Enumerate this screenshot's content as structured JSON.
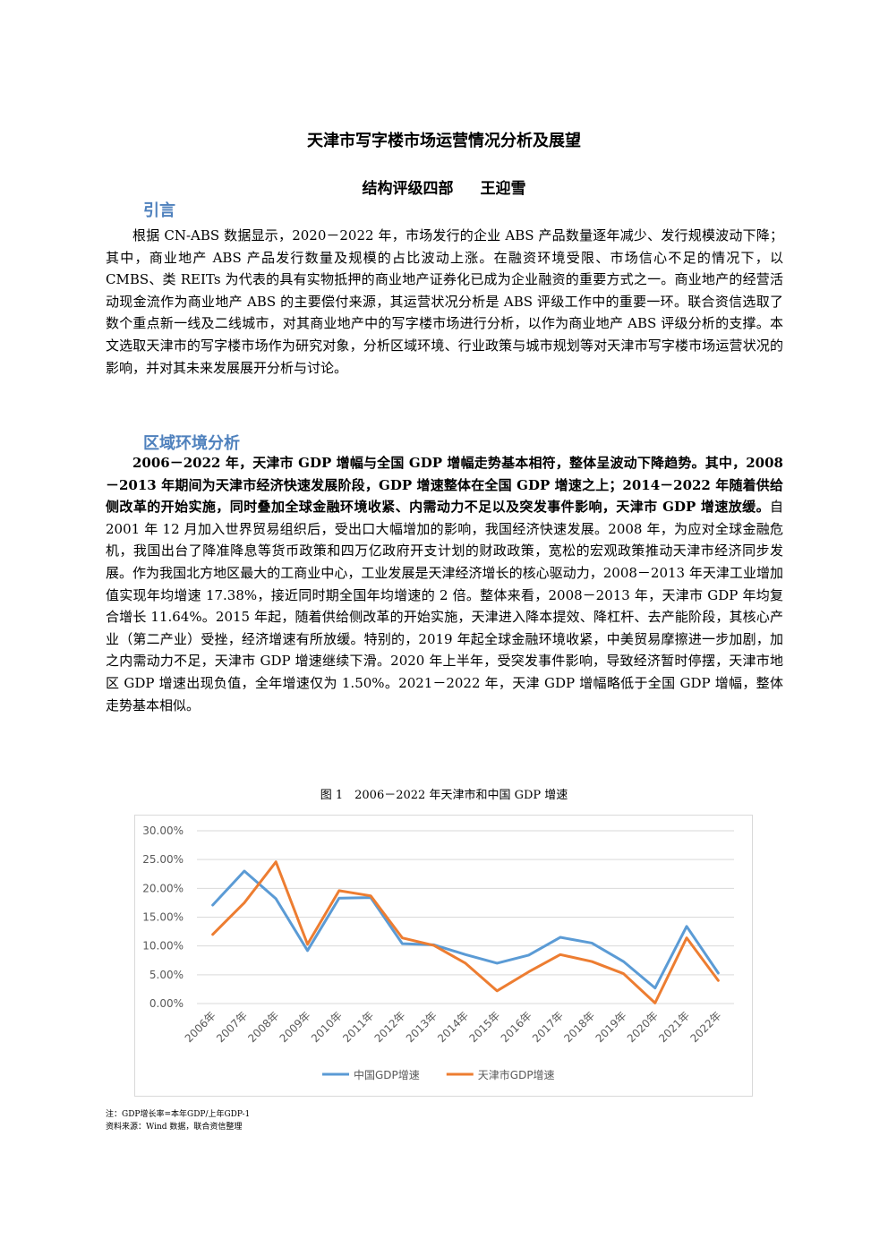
{
  "header": {
    "title": "天津市写字楼市场运营情况分析及展望",
    "department": "结构评级四部",
    "author": "王迎雪"
  },
  "sections": [
    {
      "heading": "引言",
      "paragraphs": [
        {
          "bold": null,
          "text": "根据 CN-ABS 数据显示，2020－2022 年，市场发行的企业 ABS 产品数量逐年减少、发行规模波动下降；其中，商业地产 ABS 产品发行数量及规模的占比波动上涨。在融资环境受限、市场信心不足的情况下，以 CMBS、类 REITs 为代表的具有实物抵押的商业地产证券化已成为企业融资的重要方式之一。商业地产的经营活动现金流作为商业地产 ABS 的主要偿付来源，其运营状况分析是 ABS 评级工作中的重要一环。联合资信选取了数个重点新一线及二线城市，对其商业地产中的写字楼市场进行分析，以作为商业地产 ABS 评级分析的支撑。本文选取天津市的写字楼市场作为研究对象，分析区域环境、行业政策与城市规划等对天津市写字楼市场运营状况的影响，并对其未来发展展开分析与讨论。"
        }
      ]
    },
    {
      "heading": "区域环境分析",
      "paragraphs": [
        {
          "bold": "2006－2022 年，天津市 GDP 增幅与全国 GDP 增幅走势基本相符，整体呈波动下降趋势。其中，2008－2013 年期间为天津市经济快速发展阶段，GDP 增速整体在全国 GDP 增速之上；2014－2022 年随着供给侧改革的开始实施，同时叠加全球金融环境收紧、内需动力不足以及突发事件影响，天津市 GDP 增速放缓。",
          "text": "自 2001 年 12 月加入世界贸易组织后，受出口大幅增加的影响，我国经济快速发展。2008 年，为应对全球金融危机，我国出台了降准降息等货币政策和四万亿政府开支计划的财政政策，宽松的宏观政策推动天津市经济同步发展。作为我国北方地区最大的工商业中心，工业发展是天津经济增长的核心驱动力，2008－2013 年天津工业增加值实现年均增速 17.38%，接近同时期全国年均增速的 2 倍。整体来看，2008－2013 年，天津市 GDP 年均复合增长 11.64%。2015 年起，随着供给侧改革的开始实施，天津进入降本提效、降杠杆、去产能阶段，其核心产业（第二产业）受挫，经济增速有所放缓。特别的，2019 年起全球金融环境收紧，中美贸易摩擦进一步加剧，加之内需动力不足，天津市 GDP 增速继续下滑。2020 年上半年，受突发事件影响，导致经济暂时停摆，天津市地区 GDP 增速出现负值，全年增速仅为 1.50%。2021－2022 年，天津 GDP 增幅略低于全国 GDP 增幅，整体走势基本相似。"
        }
      ]
    }
  ],
  "figure": {
    "caption": "图 1　2006－2022 年天津市和中国 GDP 增速",
    "chart_data": {
      "type": "line",
      "categories": [
        "2006年",
        "2007年",
        "2008年",
        "2009年",
        "2010年",
        "2011年",
        "2012年",
        "2013年",
        "2014年",
        "2015年",
        "2016年",
        "2017年",
        "2018年",
        "2019年",
        "2020年",
        "2021年",
        "2022年"
      ],
      "series": [
        {
          "name": "中国GDP增速",
          "color": "#5b9bd5",
          "values": [
            17.1,
            23.0,
            18.2,
            9.2,
            18.3,
            18.4,
            10.4,
            10.2,
            8.5,
            7.0,
            8.4,
            11.5,
            10.5,
            7.3,
            2.7,
            13.4,
            5.3
          ]
        },
        {
          "name": "天津市GDP增速",
          "color": "#ed7d31",
          "values": [
            12.0,
            17.5,
            24.6,
            10.3,
            19.6,
            18.7,
            11.4,
            10.1,
            7.0,
            2.2,
            5.5,
            8.5,
            7.3,
            5.2,
            0.1,
            11.4,
            4.0
          ]
        }
      ],
      "ylim": [
        0,
        30
      ],
      "yticks": [
        {
          "value": 0,
          "label": "0.00%"
        },
        {
          "value": 5,
          "label": "5.00%"
        },
        {
          "value": 10,
          "label": "10.00%"
        },
        {
          "value": 15,
          "label": "15.00%"
        },
        {
          "value": 20,
          "label": "20.00%"
        },
        {
          "value": 25,
          "label": "25.00%"
        },
        {
          "value": 30,
          "label": "30.00%"
        }
      ],
      "grid": true,
      "legend": "bottom"
    },
    "notes": [
      "注：GDP增长率=本年GDP/上年GDP-1",
      "资料来源：Wind 数据，联合资信整理"
    ]
  }
}
